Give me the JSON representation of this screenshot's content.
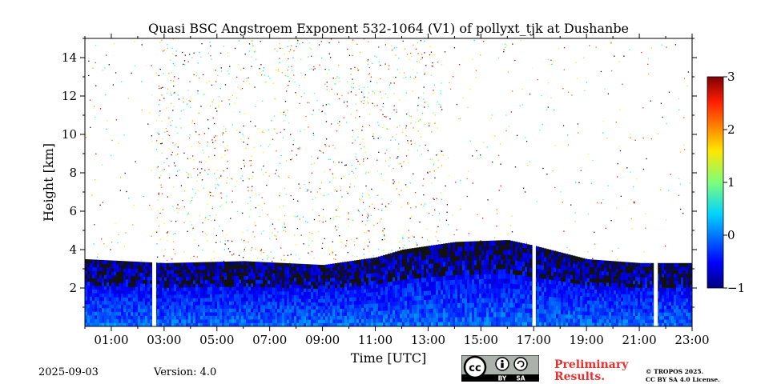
{
  "chart_data": {
    "type": "heatmap",
    "title": "Quasi BSC Angstroem Exponent 532-1064 (V1) of pollyxt_tjk at Dushanbe",
    "xlabel": "Time [UTC]",
    "ylabel": "Height [km]",
    "x_range_hours": [
      0,
      23
    ],
    "ylim": [
      0,
      15
    ],
    "x_ticks": [
      1,
      3,
      5,
      7,
      9,
      11,
      13,
      15,
      17,
      19,
      21,
      23
    ],
    "x_tick_labels": [
      "01:00",
      "03:00",
      "05:00",
      "07:00",
      "09:00",
      "11:00",
      "13:00",
      "15:00",
      "17:00",
      "19:00",
      "21:00",
      "23:00"
    ],
    "y_ticks": [
      2,
      4,
      6,
      8,
      10,
      12,
      14
    ],
    "y_tick_labels": [
      "2",
      "4",
      "6",
      "8",
      "10",
      "12",
      "14"
    ],
    "colorbar": {
      "min": -1,
      "max": 3,
      "ticks": [
        -1,
        0,
        1,
        2,
        3
      ],
      "tick_labels": [
        "−1",
        "0",
        "1",
        "2",
        "3"
      ],
      "colormap": "jet"
    },
    "data_gaps_hours": [
      [
        2.55,
        2.7
      ],
      [
        16.95,
        17.08
      ],
      [
        21.55,
        21.7
      ]
    ],
    "layers": {
      "boundary_layer_top_km": [
        [
          0,
          3.5
        ],
        [
          3,
          3.3
        ],
        [
          6,
          3.4
        ],
        [
          9,
          3.2
        ],
        [
          11,
          3.6
        ],
        [
          12,
          4.0
        ],
        [
          14,
          4.4
        ],
        [
          16,
          4.5
        ],
        [
          17,
          4.2
        ],
        [
          19,
          3.5
        ],
        [
          21,
          3.3
        ],
        [
          23,
          3.3
        ]
      ],
      "near_surface_value": 0.0,
      "boundary_layer_value": -0.3,
      "upper_scatter_value": 1.5
    }
  },
  "footer": {
    "date": "2025-09-03",
    "version": "Version: 4.0",
    "preliminary_line1": "Preliminary",
    "preliminary_line2": "Results.",
    "copyright_line1": "© TROPOS 2025.",
    "copyright_line2": "CC BY SA 4.0 License."
  },
  "badge": {
    "cc": "cc",
    "by": "BY",
    "sa": "SA"
  }
}
